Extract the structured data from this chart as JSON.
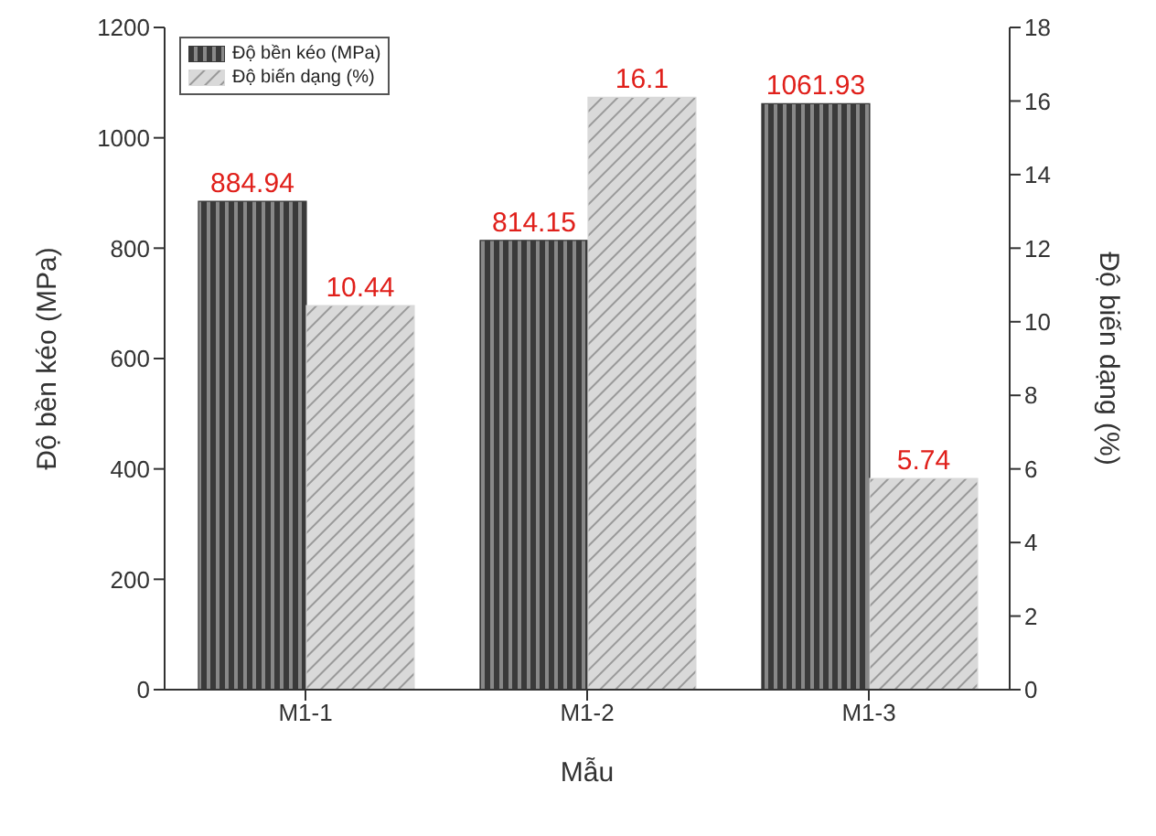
{
  "chart_data": {
    "type": "bar",
    "xlabel": "Mẫu",
    "ylabel": "Độ bền kéo (MPa)",
    "y2label": "Độ biến dạng (%)",
    "categories": [
      "M1-1",
      "M1-2",
      "M1-3"
    ],
    "series": [
      {
        "name": "Độ bền kéo (MPa)",
        "color": "#3a3a3a",
        "values": [
          884.94,
          814.15,
          1061.93
        ]
      },
      {
        "name": "Độ biến dạng (%)",
        "color": "#d9d9d9",
        "values": [
          10.44,
          16.1,
          5.74
        ],
        "axis": "y2"
      }
    ],
    "ylim": [
      0,
      1200
    ],
    "yticks": [
      0,
      200,
      400,
      600,
      800,
      1000,
      1200
    ],
    "y2lim": [
      0,
      18
    ],
    "y2ticks": [
      0,
      2,
      4,
      6,
      8,
      10,
      12,
      14,
      16,
      18
    ],
    "data_labels": true,
    "legend": "top left",
    "grid": false
  }
}
